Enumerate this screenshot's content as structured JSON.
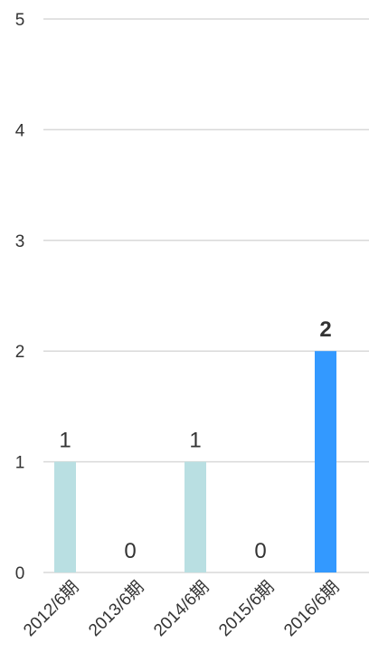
{
  "chart_data": {
    "type": "bar",
    "categories": [
      "2012/6期",
      "2013/6期",
      "2014/6期",
      "2015/6期",
      "2016/6期"
    ],
    "values": [
      1,
      0,
      1,
      0,
      2
    ],
    "ylim": [
      0,
      5
    ],
    "yticks": [
      0,
      1,
      2,
      3,
      4,
      5
    ],
    "grid": true,
    "legend": "none",
    "colors": {
      "bar": "#b9dfe2",
      "highlight": "#3399ff"
    },
    "highlight_index": 4
  }
}
